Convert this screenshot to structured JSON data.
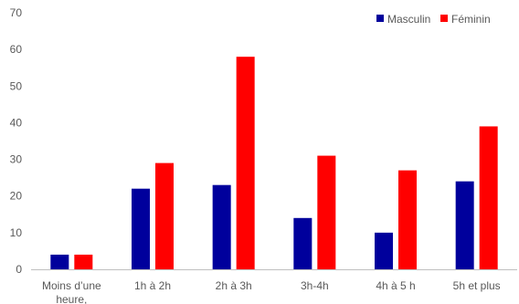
{
  "chart_data": {
    "type": "bar",
    "categories": [
      "Moins d’une heure,",
      "1h à 2h",
      "2h à 3h",
      "3h-4h",
      "4h à 5 h",
      "5h et plus"
    ],
    "series": [
      {
        "name": "Masculin",
        "color": "#00009C",
        "values": [
          4,
          22,
          23,
          14,
          10,
          24
        ]
      },
      {
        "name": "Féminin",
        "color": "#FF0000",
        "values": [
          4,
          29,
          58,
          31,
          27,
          39
        ]
      }
    ],
    "ylim": [
      0,
      70
    ],
    "yticks": [
      0,
      10,
      20,
      30,
      40,
      50,
      60,
      70
    ],
    "grid": false,
    "legend": "top-right"
  }
}
